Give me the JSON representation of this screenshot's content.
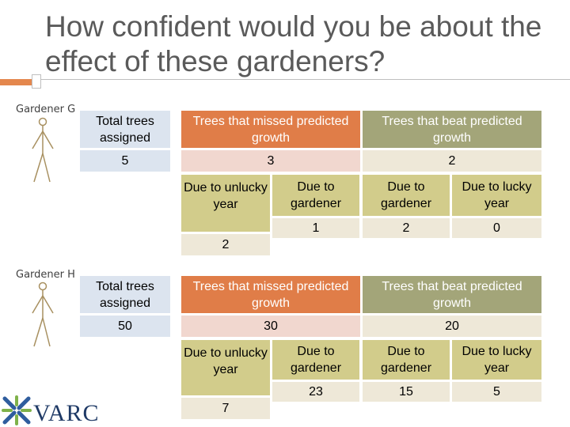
{
  "title": "How confident would you be about the effect of these gardeners?",
  "accent_color": "#e4874d",
  "colors": {
    "header_blue": "#dce4ef",
    "header_orange": "#e07d48",
    "header_sage": "#a3a579",
    "value_pink": "#f1d7cf",
    "value_tan": "#eee8d8",
    "sub_olive": "#d2cc8b"
  },
  "gardener_g": {
    "label": "Gardener G",
    "headers": {
      "total": "Total trees assigned",
      "missed": "Trees that missed predicted growth",
      "beat": "Trees that beat predicted growth"
    },
    "values": {
      "total": "5",
      "missed": "3",
      "beat": "2"
    },
    "sub_headers": {
      "unlucky": "Due to unlucky year",
      "missed_gardener": "Due to gardener",
      "beat_gardener": "Due to gardener",
      "lucky": "Due to lucky year"
    },
    "sub_values": {
      "unlucky": "2",
      "missed_gardener": "1",
      "beat_gardener": "2",
      "lucky": "0"
    }
  },
  "gardener_h": {
    "label": "Gardener H",
    "headers": {
      "total": "Total trees assigned",
      "missed": "Trees that missed predicted growth",
      "beat": "Trees that beat predicted growth"
    },
    "values": {
      "total": "50",
      "missed": "30",
      "beat": "20"
    },
    "sub_headers": {
      "unlucky": "Due to unlucky year",
      "missed_gardener": "Due to gardener",
      "beat_gardener": "Due to gardener",
      "lucky": "Due to lucky year"
    },
    "sub_values": {
      "unlucky": "7",
      "missed_gardener": "23",
      "beat_gardener": "15",
      "lucky": "5"
    }
  },
  "logo": {
    "text": "VARC",
    "icon": "varc-logo-icon"
  }
}
